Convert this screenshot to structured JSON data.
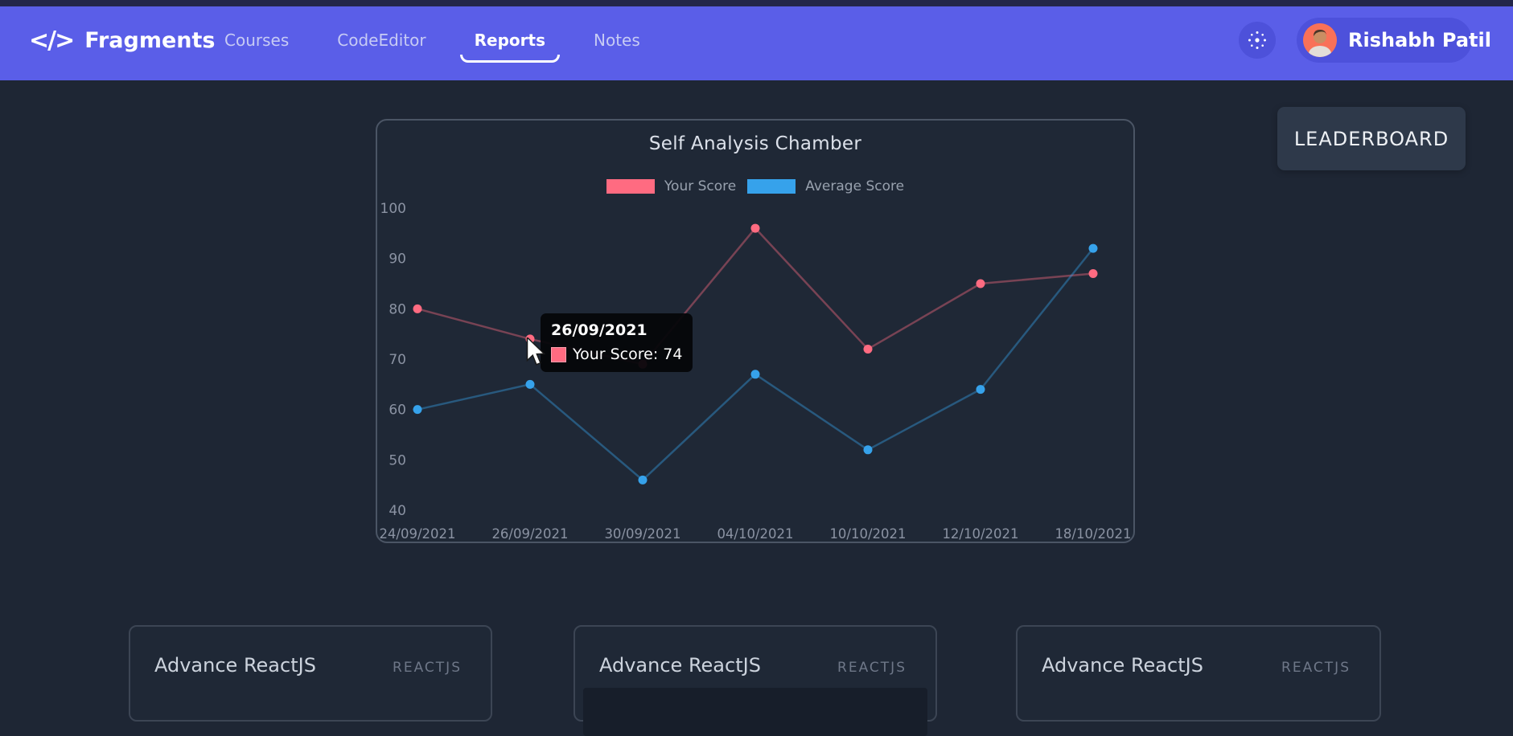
{
  "navbar": {
    "logo_icon": "</>",
    "logo_text": "Fragments",
    "items": [
      {
        "label": "Courses",
        "active": false
      },
      {
        "label": "CodeEditor",
        "active": false
      },
      {
        "label": "Reports",
        "active": true
      },
      {
        "label": "Notes",
        "active": false
      }
    ],
    "user_name": "Rishabh Patil",
    "colors": {
      "bar": "#5a5ee8",
      "pill": "#4d51db",
      "avatar_bg": "#f97158"
    }
  },
  "leaderboard_button_label": "LEADERBOARD",
  "chart_data": {
    "type": "line",
    "title": "Self Analysis Chamber",
    "categories": [
      "24/09/2021",
      "26/09/2021",
      "30/09/2021",
      "04/10/2021",
      "10/10/2021",
      "12/10/2021",
      "18/10/2021"
    ],
    "series": [
      {
        "name": "Your Score",
        "color": "#ff6b81",
        "values": [
          80,
          74,
          69,
          96,
          72,
          85,
          87
        ]
      },
      {
        "name": "Average Score",
        "color": "#36a2eb",
        "values": [
          60,
          65,
          46,
          67,
          52,
          64,
          92
        ]
      }
    ],
    "ylim": [
      40,
      100
    ],
    "yticks": [
      40,
      50,
      60,
      70,
      80,
      90,
      100
    ],
    "grid": false,
    "legend_position": "top-center",
    "axis_color": "#8b93a3"
  },
  "tooltip": {
    "title": "26/09/2021",
    "series": "Your Score",
    "value": 74,
    "row_text": "Your Score: 74",
    "color": "#ff6b81"
  },
  "courses": [
    {
      "title": "Advance ReactJS",
      "tag": "REACTJS"
    },
    {
      "title": "Advance ReactJS",
      "tag": "REACTJS"
    },
    {
      "title": "Advance ReactJS",
      "tag": "REACTJS"
    }
  ]
}
